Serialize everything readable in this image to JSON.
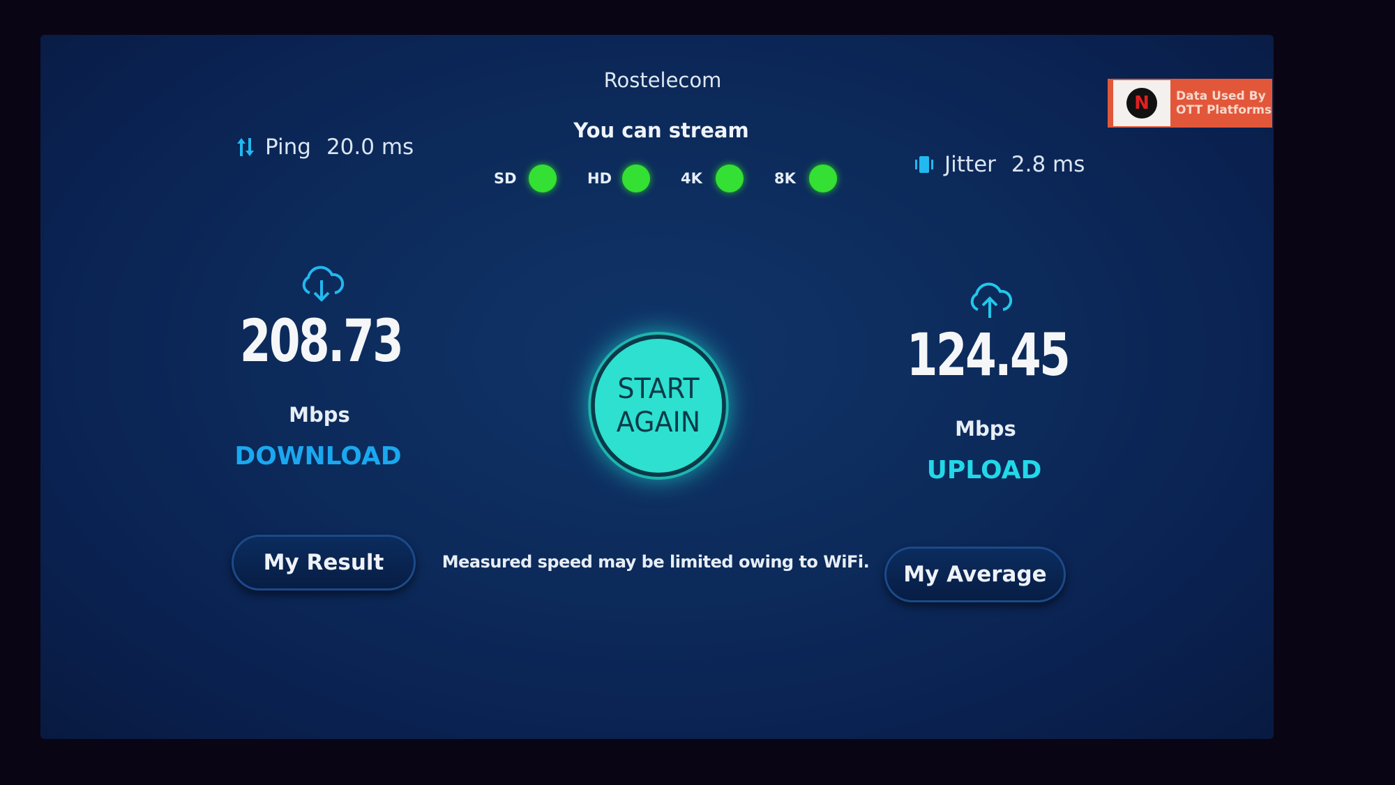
{
  "header": {
    "provider": "Rostelecom"
  },
  "badge": {
    "logo_letter": "N",
    "line1": "Data Used By",
    "line2": "OTT Platforms"
  },
  "ping": {
    "label": "Ping",
    "value": "20.0 ms",
    "icon": "up-down-arrows-icon"
  },
  "jitter": {
    "label": "Jitter",
    "value": "2.8 ms",
    "icon": "vibration-icon"
  },
  "stream": {
    "title": "You can stream",
    "qualities": [
      {
        "label": "SD",
        "available": true
      },
      {
        "label": "HD",
        "available": true
      },
      {
        "label": "4K",
        "available": true
      },
      {
        "label": "8K",
        "available": true
      }
    ],
    "dot_color": "#33e033"
  },
  "download": {
    "value": "208.73",
    "unit": "Mbps",
    "label": "DOWNLOAD",
    "color": "#1aa8f0",
    "icon": "cloud-download-icon"
  },
  "upload": {
    "value": "124.45",
    "unit": "Mbps",
    "label": "UPLOAD",
    "color": "#22d8e8",
    "icon": "cloud-upload-icon"
  },
  "start_button": {
    "line1": "START",
    "line2": "AGAIN",
    "color": "#2ee0cf"
  },
  "buttons": {
    "my_result": "My Result",
    "my_average": "My Average"
  },
  "note": "Measured speed may be limited owing to WiFi."
}
